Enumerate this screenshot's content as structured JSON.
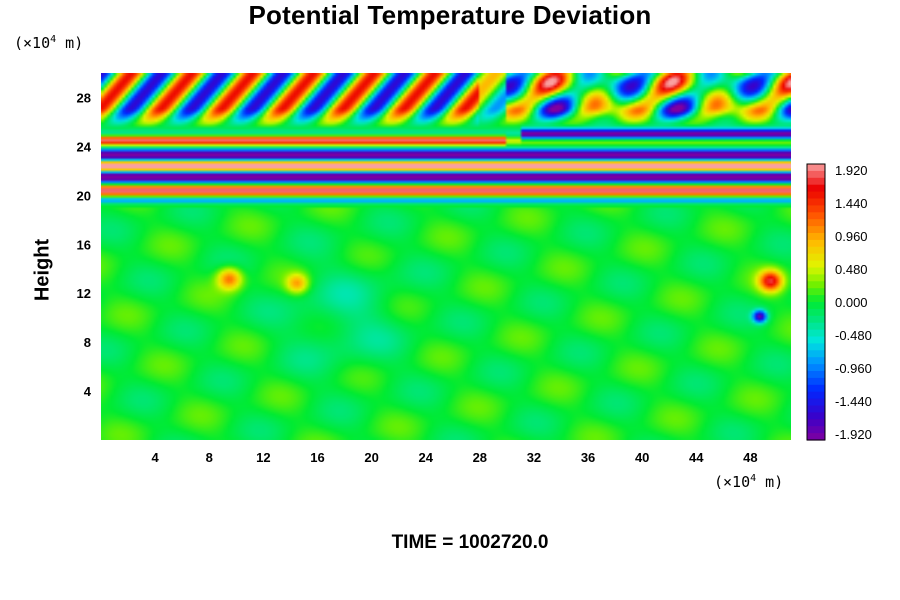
{
  "chart_data": {
    "type": "heatmap",
    "title": "Potential Temperature Deviation",
    "ylabel": "Height",
    "x_unit": {
      "prefix": "(×10",
      "exp": "4",
      "suffix": " m)"
    },
    "y_unit": {
      "prefix": "(×10",
      "exp": "4",
      "suffix": " m)"
    },
    "xlim": [
      0,
      51
    ],
    "ylim": [
      0,
      30
    ],
    "x_ticks": [
      4,
      8,
      12,
      16,
      20,
      24,
      28,
      32,
      36,
      40,
      44,
      48
    ],
    "y_ticks": [
      4,
      8,
      12,
      16,
      20,
      24,
      28
    ],
    "colorbar": {
      "range": [
        -2.0,
        2.0
      ],
      "tick_labels": [
        "1.920",
        "1.440",
        "0.960",
        "0.480",
        "0.000",
        "-0.480",
        "-0.960",
        "-1.440",
        "-1.920"
      ],
      "tick_values": [
        1.92,
        1.44,
        0.96,
        0.48,
        0.0,
        -0.48,
        -0.96,
        -1.44,
        -1.92
      ]
    },
    "footer": "TIME = 1002720.0"
  }
}
